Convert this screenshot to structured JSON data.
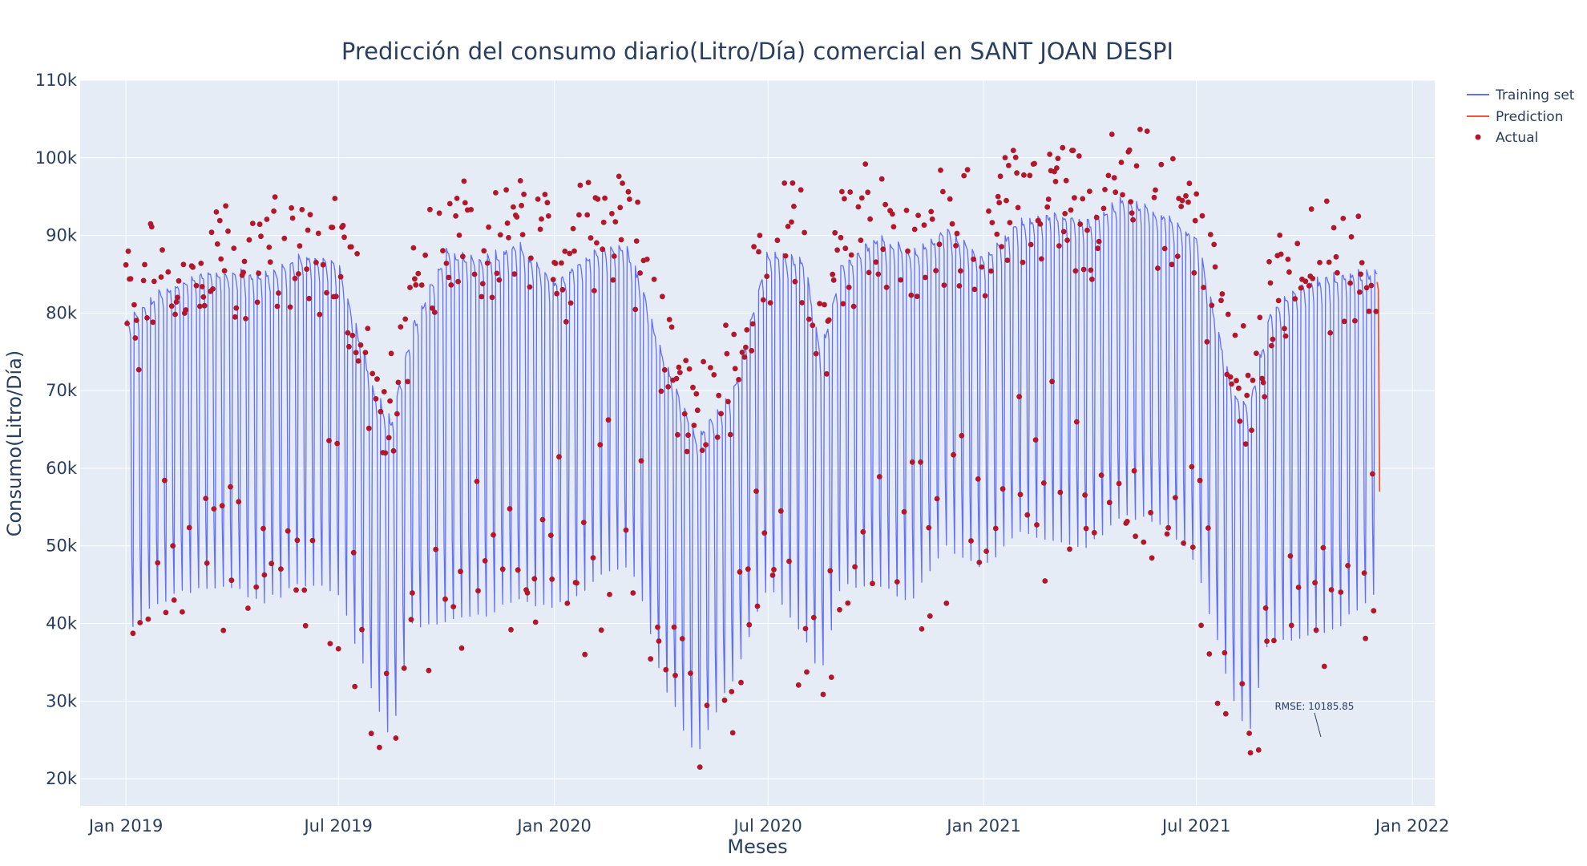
{
  "chart_data": {
    "type": "line",
    "title": "Predicción del consumo diario(Litro/Día) comercial en SANT JOAN DESPI",
    "xlabel": "Meses",
    "ylabel": "Consumo(Litro/Día)",
    "xlim": [
      "2018-11-23",
      "2022-01-20"
    ],
    "ylim": [
      16500,
      110000
    ],
    "x_ticks": [
      {
        "date": "2019-01-01",
        "label": "Jan 2019"
      },
      {
        "date": "2019-07-01",
        "label": "Jul 2019"
      },
      {
        "date": "2020-01-01",
        "label": "Jan 2020"
      },
      {
        "date": "2020-07-01",
        "label": "Jul 2020"
      },
      {
        "date": "2021-01-01",
        "label": "Jan 2021"
      },
      {
        "date": "2021-07-01",
        "label": "Jul 2021"
      },
      {
        "date": "2022-01-01",
        "label": "Jan 2022"
      }
    ],
    "y_ticks": [
      {
        "value": 20000,
        "label": "20k"
      },
      {
        "value": 30000,
        "label": "30k"
      },
      {
        "value": 40000,
        "label": "40k"
      },
      {
        "value": 50000,
        "label": "50k"
      },
      {
        "value": 60000,
        "label": "60k"
      },
      {
        "value": 70000,
        "label": "70k"
      },
      {
        "value": 80000,
        "label": "80k"
      },
      {
        "value": 90000,
        "label": "90k"
      },
      {
        "value": 100000,
        "label": "100k"
      },
      {
        "value": 110000,
        "label": "110k"
      }
    ],
    "grid": true,
    "legend_position": "top-right",
    "series": [
      {
        "name": "Training set",
        "kind": "line",
        "color": "#636efa",
        "description": "daily values with weekly cycle; weekly high/low envelope listed",
        "envelope": [
          {
            "date": "2019-01-01",
            "high": 79000,
            "low": 39000
          },
          {
            "date": "2019-02-01",
            "high": 83000,
            "low": 43000
          },
          {
            "date": "2019-03-01",
            "high": 85000,
            "low": 44500
          },
          {
            "date": "2019-04-01",
            "high": 85500,
            "low": 44500
          },
          {
            "date": "2019-05-01",
            "high": 85000,
            "low": 43000
          },
          {
            "date": "2019-06-01",
            "high": 87500,
            "low": 45000
          },
          {
            "date": "2019-07-01",
            "high": 86500,
            "low": 44000
          },
          {
            "date": "2019-08-01",
            "high": 70000,
            "low": 30000
          },
          {
            "date": "2019-08-15",
            "high": 66000,
            "low": 25000
          },
          {
            "date": "2019-09-01",
            "high": 78000,
            "low": 40000
          },
          {
            "date": "2019-10-01",
            "high": 88000,
            "low": 40000
          },
          {
            "date": "2019-11-01",
            "high": 87000,
            "low": 41000
          },
          {
            "date": "2019-12-01",
            "high": 89000,
            "low": 43000
          },
          {
            "date": "2020-01-01",
            "high": 84000,
            "low": 42000
          },
          {
            "date": "2020-02-01",
            "high": 88000,
            "low": 45000
          },
          {
            "date": "2020-03-01",
            "high": 89000,
            "low": 48000
          },
          {
            "date": "2020-03-15",
            "high": 84000,
            "low": 44000
          },
          {
            "date": "2020-04-01",
            "high": 75000,
            "low": 33000
          },
          {
            "date": "2020-05-01",
            "high": 64000,
            "low": 23000
          },
          {
            "date": "2020-06-01",
            "high": 70000,
            "low": 33000
          },
          {
            "date": "2020-07-01",
            "high": 88000,
            "low": 45000
          },
          {
            "date": "2020-08-01",
            "high": 87000,
            "low": 38000
          },
          {
            "date": "2020-08-15",
            "high": 75000,
            "low": 33000
          },
          {
            "date": "2020-09-01",
            "high": 86000,
            "low": 45000
          },
          {
            "date": "2020-10-01",
            "high": 90000,
            "low": 45000
          },
          {
            "date": "2020-11-01",
            "high": 88000,
            "low": 43000
          },
          {
            "date": "2020-12-01",
            "high": 91000,
            "low": 50000
          },
          {
            "date": "2021-01-01",
            "high": 87000,
            "low": 47000
          },
          {
            "date": "2021-02-01",
            "high": 92000,
            "low": 52000
          },
          {
            "date": "2021-03-01",
            "high": 93000,
            "low": 51000
          },
          {
            "date": "2021-04-01",
            "high": 92000,
            "low": 50000
          },
          {
            "date": "2021-05-01",
            "high": 95000,
            "low": 54000
          },
          {
            "date": "2021-06-01",
            "high": 93000,
            "low": 53000
          },
          {
            "date": "2021-07-01",
            "high": 90000,
            "low": 48000
          },
          {
            "date": "2021-08-01",
            "high": 70000,
            "low": 30000
          },
          {
            "date": "2021-08-15",
            "high": 68000,
            "low": 26000
          },
          {
            "date": "2021-09-01",
            "high": 80000,
            "low": 38000
          },
          {
            "date": "2021-10-01",
            "high": 84000,
            "low": 38000
          },
          {
            "date": "2021-11-01",
            "high": 85000,
            "low": 40000
          },
          {
            "date": "2021-12-01",
            "high": 85500,
            "low": 44000
          }
        ]
      },
      {
        "name": "Prediction",
        "kind": "line",
        "color": "#ef553b",
        "points": [
          {
            "date": "2021-12-02",
            "value": 84000
          },
          {
            "date": "2021-12-03",
            "value": 83000
          },
          {
            "date": "2021-12-04",
            "value": 57000
          }
        ]
      },
      {
        "name": "Actual",
        "kind": "markers",
        "color": "#b2182b",
        "description": "daily observed values scattered around the training series (about 1070 points), ranging from ~22000 to ~105000"
      }
    ],
    "annotations": [
      {
        "text": "RMSE: 10185.85",
        "date": "2021-10-15",
        "value": 26000
      }
    ]
  }
}
